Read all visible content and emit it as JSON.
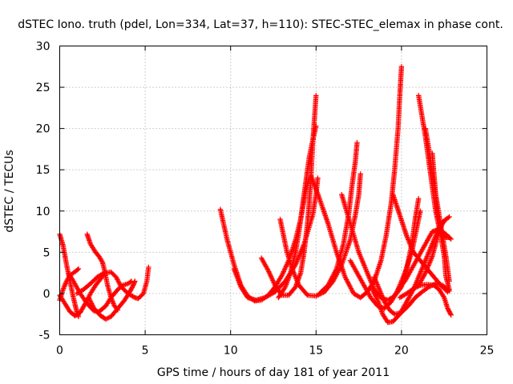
{
  "chart_data": {
    "type": "scatter",
    "title": "dSTEC Iono. truth (pdel, Lon=334, Lat=37, h=110): STEC-STEC_elemax in phase cont.",
    "xlabel": "GPS time / hours of day 181 of year 2011",
    "ylabel": "dSTEC  / TECUs",
    "xlim": [
      0,
      25
    ],
    "ylim": [
      -5,
      30
    ],
    "xticks": [
      0,
      5,
      10,
      15,
      20,
      25
    ],
    "yticks": [
      -5,
      0,
      5,
      10,
      15,
      20,
      25,
      30
    ],
    "grid": true,
    "marker": "+",
    "series_color": "#ff0000",
    "series": [
      {
        "points": [
          [
            0.0,
            7.2
          ],
          [
            0.2,
            5.8
          ],
          [
            0.4,
            3.5
          ],
          [
            0.6,
            1.5
          ],
          [
            0.8,
            -0.5
          ],
          [
            1.0,
            -2.2
          ],
          [
            1.1,
            -2.8
          ]
        ]
      },
      {
        "points": [
          [
            0.0,
            -0.2
          ],
          [
            0.3,
            -1.2
          ],
          [
            0.6,
            -2.2
          ],
          [
            0.9,
            -2.7
          ],
          [
            1.2,
            -2.3
          ],
          [
            1.5,
            -1.2
          ],
          [
            1.8,
            0.0
          ],
          [
            2.1,
            1.0
          ],
          [
            2.4,
            1.8
          ],
          [
            2.6,
            2.5
          ]
        ]
      },
      {
        "points": [
          [
            0.0,
            -0.8
          ],
          [
            0.2,
            0.5
          ],
          [
            0.4,
            1.5
          ],
          [
            0.6,
            2.2
          ],
          [
            0.8,
            2.5
          ],
          [
            1.0,
            2.8
          ],
          [
            1.1,
            3.0
          ]
        ]
      },
      {
        "points": [
          [
            0.5,
            2.5
          ],
          [
            0.8,
            1.5
          ],
          [
            1.2,
            0.0
          ],
          [
            1.6,
            -1.2
          ],
          [
            2.0,
            -2.1
          ],
          [
            2.3,
            -2.2
          ],
          [
            2.7,
            -1.5
          ],
          [
            3.0,
            -0.5
          ],
          [
            3.4,
            0.5
          ],
          [
            3.7,
            1.0
          ],
          [
            4.0,
            1.2
          ],
          [
            4.2,
            1.5
          ]
        ]
      },
      {
        "points": [
          [
            1.6,
            7.2
          ],
          [
            1.8,
            6.0
          ],
          [
            2.1,
            5.0
          ],
          [
            2.3,
            4.5
          ],
          [
            2.5,
            3.8
          ],
          [
            2.6,
            3.0
          ],
          [
            2.8,
            1.0
          ],
          [
            3.0,
            -0.5
          ],
          [
            3.2,
            -1.5
          ],
          [
            3.4,
            -2.0
          ]
        ]
      },
      {
        "points": [
          [
            1.0,
            0.0
          ],
          [
            1.4,
            0.5
          ],
          [
            1.8,
            1.2
          ],
          [
            2.2,
            2.0
          ],
          [
            2.6,
            2.5
          ],
          [
            3.0,
            2.6
          ],
          [
            3.3,
            2.0
          ],
          [
            3.6,
            0.8
          ],
          [
            4.0,
            0.0
          ],
          [
            4.4,
            -0.5
          ],
          [
            4.6,
            -0.6
          ],
          [
            4.9,
            0.0
          ],
          [
            5.1,
            1.5
          ],
          [
            5.2,
            3.2
          ]
        ]
      },
      {
        "points": [
          [
            1.7,
            -0.5
          ],
          [
            2.0,
            -1.8
          ],
          [
            2.4,
            -2.7
          ],
          [
            2.7,
            -3.1
          ],
          [
            3.0,
            -2.8
          ],
          [
            3.4,
            -1.8
          ],
          [
            3.8,
            -0.8
          ],
          [
            4.1,
            0.2
          ],
          [
            4.3,
            1.0
          ],
          [
            4.4,
            1.5
          ]
        ]
      },
      {
        "points": [
          [
            9.4,
            10.2
          ],
          [
            9.8,
            6.5
          ],
          [
            10.2,
            3.5
          ],
          [
            10.6,
            1.0
          ],
          [
            11.0,
            -0.3
          ],
          [
            11.4,
            -0.9
          ],
          [
            11.8,
            -0.8
          ],
          [
            12.2,
            -0.2
          ],
          [
            12.6,
            0.8
          ],
          [
            13.0,
            2.2
          ],
          [
            13.4,
            4.0
          ],
          [
            13.8,
            6.5
          ],
          [
            14.1,
            9.0
          ],
          [
            14.4,
            12.5
          ],
          [
            14.6,
            14.0
          ]
        ]
      },
      {
        "points": [
          [
            10.2,
            3.0
          ],
          [
            10.6,
            0.8
          ],
          [
            11.0,
            -0.5
          ],
          [
            11.5,
            -0.8
          ],
          [
            12.0,
            -0.5
          ],
          [
            12.6,
            0.2
          ],
          [
            13.2,
            1.5
          ],
          [
            13.8,
            3.5
          ],
          [
            14.3,
            6.0
          ],
          [
            14.8,
            9.5
          ],
          [
            15.0,
            12.0
          ],
          [
            15.1,
            14.0
          ]
        ]
      },
      {
        "points": [
          [
            11.8,
            4.3
          ],
          [
            12.2,
            2.8
          ],
          [
            12.6,
            1.0
          ],
          [
            13.0,
            -0.2
          ],
          [
            13.4,
            -0.2
          ],
          [
            13.8,
            0.8
          ],
          [
            14.1,
            2.5
          ],
          [
            14.3,
            5.0
          ],
          [
            14.5,
            8.5
          ],
          [
            14.6,
            11.0
          ],
          [
            14.7,
            14.0
          ],
          [
            14.8,
            18.0
          ],
          [
            14.9,
            21.0
          ],
          [
            15.0,
            24.0
          ]
        ]
      },
      {
        "points": [
          [
            12.8,
            -0.5
          ],
          [
            13.2,
            0.8
          ],
          [
            13.5,
            2.5
          ],
          [
            13.8,
            5.0
          ],
          [
            14.0,
            7.5
          ],
          [
            14.2,
            10.5
          ],
          [
            14.4,
            13.5
          ],
          [
            14.6,
            16.5
          ],
          [
            14.8,
            18.5
          ],
          [
            15.0,
            20.3
          ]
        ]
      },
      {
        "points": [
          [
            12.9,
            9.0
          ],
          [
            13.1,
            7.0
          ],
          [
            13.3,
            5.0
          ],
          [
            13.6,
            3.0
          ],
          [
            14.0,
            1.0
          ],
          [
            14.5,
            -0.2
          ],
          [
            15.0,
            -0.3
          ],
          [
            15.5,
            0.2
          ],
          [
            16.0,
            1.5
          ],
          [
            16.5,
            3.5
          ],
          [
            17.0,
            6.5
          ],
          [
            17.3,
            9.5
          ],
          [
            17.5,
            12.0
          ],
          [
            17.6,
            14.5
          ]
        ]
      },
      {
        "points": [
          [
            14.7,
            14.3
          ],
          [
            15.2,
            11.5
          ],
          [
            15.7,
            8.5
          ],
          [
            16.2,
            5.0
          ],
          [
            16.7,
            2.0
          ],
          [
            17.2,
            0.0
          ],
          [
            17.6,
            -0.5
          ],
          [
            18.0,
            0.2
          ],
          [
            18.4,
            1.5
          ],
          [
            18.8,
            4.0
          ],
          [
            19.1,
            7.0
          ],
          [
            19.4,
            11.0
          ],
          [
            19.6,
            15.0
          ],
          [
            19.8,
            20.0
          ],
          [
            19.9,
            24.0
          ],
          [
            20.0,
            27.5
          ]
        ]
      },
      {
        "points": [
          [
            15.2,
            0.0
          ],
          [
            15.7,
            1.0
          ],
          [
            16.2,
            3.0
          ],
          [
            16.6,
            6.0
          ],
          [
            16.9,
            9.5
          ],
          [
            17.1,
            13.0
          ],
          [
            17.3,
            16.0
          ],
          [
            17.4,
            18.3
          ]
        ]
      },
      {
        "points": [
          [
            16.5,
            12.0
          ],
          [
            17.0,
            8.5
          ],
          [
            17.5,
            5.0
          ],
          [
            18.0,
            2.5
          ],
          [
            18.4,
            0.5
          ],
          [
            18.8,
            -0.5
          ],
          [
            19.2,
            -0.8
          ],
          [
            19.6,
            -0.3
          ],
          [
            20.0,
            0.8
          ],
          [
            20.3,
            3.0
          ],
          [
            20.6,
            6.0
          ],
          [
            20.8,
            9.0
          ],
          [
            21.0,
            11.5
          ]
        ]
      },
      {
        "points": [
          [
            17.0,
            4.0
          ],
          [
            17.4,
            2.5
          ],
          [
            17.8,
            1.0
          ],
          [
            18.2,
            -0.5
          ],
          [
            18.6,
            -1.5
          ],
          [
            19.0,
            -1.8
          ],
          [
            19.4,
            -1.0
          ],
          [
            19.8,
            0.5
          ],
          [
            20.2,
            2.5
          ],
          [
            20.6,
            5.0
          ],
          [
            20.9,
            8.0
          ],
          [
            21.1,
            10.0
          ]
        ]
      },
      {
        "points": [
          [
            18.4,
            2.0
          ],
          [
            18.7,
            0.5
          ],
          [
            19.0,
            -1.0
          ],
          [
            19.3,
            -2.0
          ],
          [
            19.6,
            -2.5
          ],
          [
            20.0,
            -2.3
          ],
          [
            20.4,
            -1.5
          ],
          [
            20.8,
            -0.5
          ],
          [
            21.2,
            0.2
          ],
          [
            21.6,
            0.8
          ],
          [
            22.0,
            1.2
          ],
          [
            22.4,
            1.0
          ],
          [
            22.8,
            0.3
          ]
        ]
      },
      {
        "points": [
          [
            18.3,
            0.5
          ],
          [
            18.6,
            -0.8
          ],
          [
            18.9,
            -2.5
          ],
          [
            19.2,
            -3.5
          ],
          [
            19.5,
            -3.4
          ],
          [
            19.9,
            -2.5
          ],
          [
            20.3,
            -1.0
          ],
          [
            20.7,
            0.5
          ],
          [
            21.1,
            2.5
          ],
          [
            21.5,
            4.5
          ],
          [
            21.9,
            6.5
          ],
          [
            22.3,
            8.5
          ],
          [
            22.8,
            9.3
          ]
        ]
      },
      {
        "points": [
          [
            19.5,
            12.0
          ],
          [
            19.9,
            9.5
          ],
          [
            20.3,
            7.0
          ],
          [
            20.7,
            5.0
          ],
          [
            21.1,
            4.0
          ],
          [
            21.5,
            3.0
          ],
          [
            21.9,
            2.0
          ],
          [
            22.3,
            1.0
          ],
          [
            22.7,
            0.2
          ]
        ]
      },
      {
        "points": [
          [
            19.8,
            0.5
          ],
          [
            20.2,
            1.5
          ],
          [
            20.6,
            3.0
          ],
          [
            21.0,
            4.5
          ],
          [
            21.4,
            6.0
          ],
          [
            21.8,
            7.5
          ],
          [
            22.2,
            7.8
          ],
          [
            22.6,
            7.2
          ],
          [
            22.9,
            6.6
          ]
        ]
      },
      {
        "points": [
          [
            21.0,
            24.0
          ],
          [
            21.2,
            21.5
          ],
          [
            21.4,
            19.0
          ],
          [
            21.6,
            16.0
          ],
          [
            21.8,
            13.0
          ],
          [
            22.0,
            10.0
          ],
          [
            22.2,
            8.0
          ],
          [
            22.4,
            7.0
          ],
          [
            22.6,
            6.8
          ],
          [
            22.8,
            6.8
          ]
        ]
      },
      {
        "points": [
          [
            21.4,
            20.0
          ],
          [
            21.6,
            17.5
          ],
          [
            21.8,
            14.5
          ],
          [
            22.0,
            12.0
          ],
          [
            22.2,
            9.5
          ],
          [
            22.4,
            7.0
          ],
          [
            22.6,
            4.5
          ],
          [
            22.8,
            1.5
          ]
        ]
      },
      {
        "points": [
          [
            21.8,
            17.0
          ],
          [
            21.9,
            14.5
          ],
          [
            22.0,
            12.0
          ],
          [
            22.1,
            9.5
          ],
          [
            22.3,
            7.0
          ],
          [
            22.5,
            4.5
          ],
          [
            22.6,
            2.0
          ],
          [
            22.8,
            0.5
          ]
        ]
      },
      {
        "points": [
          [
            21.0,
            1.0
          ],
          [
            21.4,
            2.5
          ],
          [
            21.8,
            4.5
          ],
          [
            22.0,
            6.0
          ],
          [
            22.2,
            7.5
          ],
          [
            22.4,
            8.5
          ],
          [
            22.6,
            9.0
          ]
        ]
      },
      {
        "points": [
          [
            19.9,
            -0.5
          ],
          [
            20.3,
            0.0
          ],
          [
            20.7,
            0.6
          ],
          [
            21.1,
            1.0
          ],
          [
            21.5,
            1.1
          ],
          [
            21.9,
            1.0
          ],
          [
            22.2,
            0.5
          ],
          [
            22.5,
            -0.5
          ],
          [
            22.7,
            -1.8
          ],
          [
            22.9,
            -2.6
          ]
        ]
      }
    ]
  }
}
